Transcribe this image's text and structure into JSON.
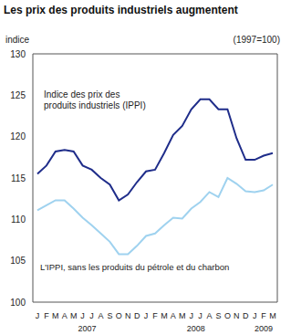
{
  "chart_data": {
    "type": "line",
    "title": "Les prix des produits industriels augmentent",
    "y_label": "indice",
    "subtitle": "(1997=100)",
    "categories": [
      "J",
      "F",
      "M",
      "A",
      "M",
      "J",
      "J",
      "A",
      "S",
      "O",
      "N",
      "D",
      "J",
      "F",
      "M",
      "A",
      "M",
      "J",
      "J",
      "A",
      "S",
      "O",
      "N",
      "D",
      "J",
      "F",
      "M"
    ],
    "x_groups": [
      {
        "label": "2007",
        "count": 12
      },
      {
        "label": "2008",
        "count": 12
      },
      {
        "label": "2009",
        "count": 3
      }
    ],
    "series": [
      {
        "name": "Indice des prix des produits industriels (IPPI)",
        "color": "#1f2d8a",
        "values": [
          115.5,
          116.5,
          118.2,
          118.4,
          118.2,
          116.5,
          116.0,
          115.0,
          114.2,
          112.3,
          113.0,
          114.5,
          115.8,
          116.0,
          118.0,
          120.2,
          121.3,
          123.3,
          124.5,
          124.5,
          123.3,
          123.3,
          119.8,
          117.2,
          117.2,
          117.7,
          118.0
        ]
      },
      {
        "name": "L'IPPI, sans les produits du pétrole et du charbon",
        "color": "#9fd2ef",
        "values": [
          111.1,
          111.7,
          112.3,
          112.3,
          111.3,
          110.2,
          109.3,
          108.3,
          107.3,
          105.8,
          105.8,
          106.8,
          108.0,
          108.3,
          109.3,
          110.2,
          110.1,
          111.3,
          112.1,
          113.3,
          112.7,
          115.0,
          114.3,
          113.4,
          113.3,
          113.5,
          114.2
        ]
      }
    ],
    "ylim": [
      100,
      130
    ],
    "yticks": [
      100,
      105,
      110,
      115,
      120,
      125,
      130
    ],
    "grid": false,
    "legend": "none"
  }
}
